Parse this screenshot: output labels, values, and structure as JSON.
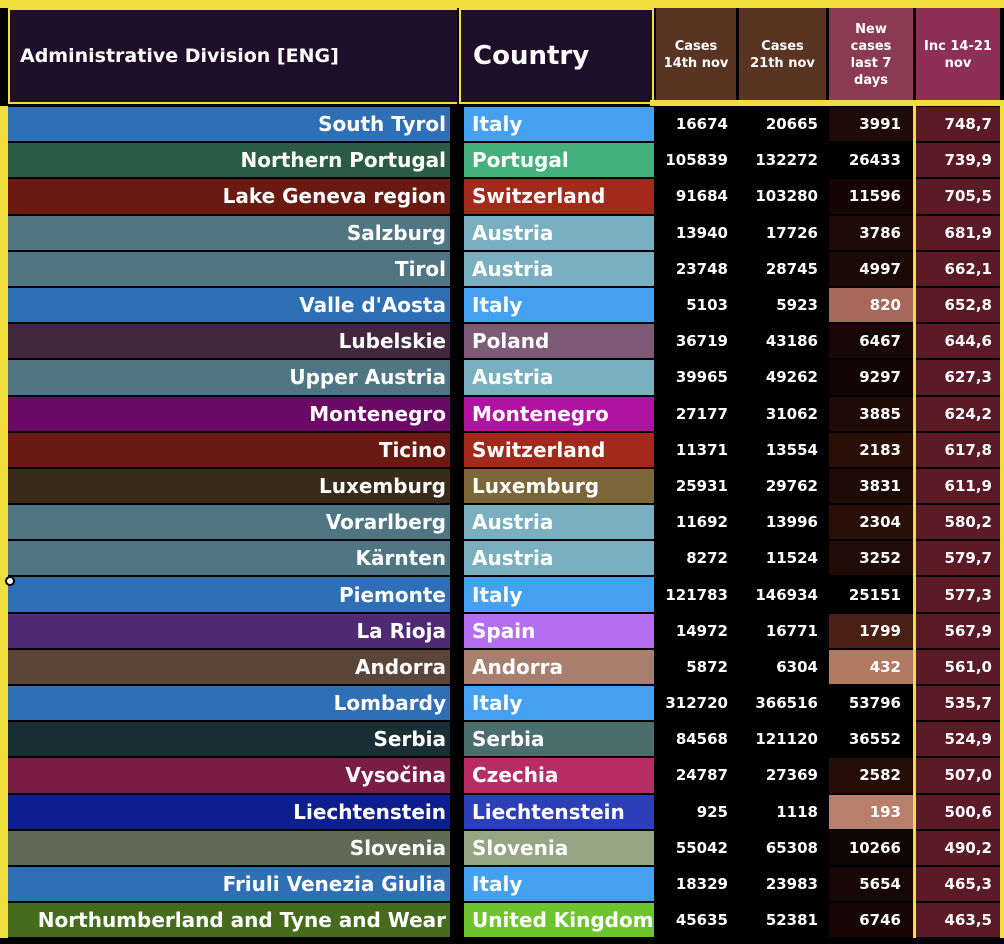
{
  "header": {
    "admin": "Administrative Division [ENG]",
    "country": "Country",
    "cases14": "Cases\n14th nov",
    "cases21": "Cases\n21th nov",
    "new7": "New\ncases\nlast 7\ndays",
    "inc": "Inc 14-21\nnov"
  },
  "rows": [
    {
      "admin": "South Tyrol",
      "country": "Italy",
      "c14": "16674",
      "c21": "20665",
      "new": "3991",
      "inc": "748,7",
      "ac": "#2e6fb5",
      "cc": "#44a1f1",
      "nc": "#1e0b07"
    },
    {
      "admin": "Northern Portugal",
      "country": "Portugal",
      "c14": "105839",
      "c21": "132272",
      "new": "26433",
      "inc": "739,9",
      "ac": "#2b5c43",
      "cc": "#44b07b",
      "nc": "#000000"
    },
    {
      "admin": "Lake Geneva region",
      "country": "Switzerland",
      "c14": "91684",
      "c21": "103280",
      "new": "11596",
      "inc": "705,5",
      "ac": "#6b1a12",
      "cc": "#a32a1a",
      "nc": "#160504"
    },
    {
      "admin": "Salzburg",
      "country": "Austria",
      "c14": "13940",
      "c21": "17726",
      "new": "3786",
      "inc": "681,9",
      "ac": "#4f7682",
      "cc": "#7aafbf",
      "nc": "#1e0b07"
    },
    {
      "admin": "Tirol",
      "country": "Austria",
      "c14": "23748",
      "c21": "28745",
      "new": "4997",
      "inc": "662,1",
      "ac": "#4f7682",
      "cc": "#7aafbf",
      "nc": "#1a0905"
    },
    {
      "admin": "Valle d'Aosta",
      "country": "Italy",
      "c14": "5103",
      "c21": "5923",
      "new": "820",
      "inc": "652,8",
      "ac": "#2e6fb5",
      "cc": "#44a1f1",
      "nc": "#a8675a"
    },
    {
      "admin": "Lubelskie",
      "country": "Poland",
      "c14": "36719",
      "c21": "43186",
      "new": "6467",
      "inc": "644,6",
      "ac": "#42283e",
      "cc": "#7d5a78",
      "nc": "#170805"
    },
    {
      "admin": "Upper Austria",
      "country": "Austria",
      "c14": "39965",
      "c21": "49262",
      "new": "9297",
      "inc": "627,3",
      "ac": "#4f7682",
      "cc": "#7aafbf",
      "nc": "#130503"
    },
    {
      "admin": "Montenegro",
      "country": "Montenegro",
      "c14": "27177",
      "c21": "31062",
      "new": "3885",
      "inc": "624,2",
      "ac": "#6b0a64",
      "cc": "#b0139f",
      "nc": "#1e0b07"
    },
    {
      "admin": "Ticino",
      "country": "Switzerland",
      "c14": "11371",
      "c21": "13554",
      "new": "2183",
      "inc": "617,8",
      "ac": "#6b1a12",
      "cc": "#a32a1a",
      "nc": "#2a0f09"
    },
    {
      "admin": "Luxemburg",
      "country": "Luxemburg",
      "c14": "25931",
      "c21": "29762",
      "new": "3831",
      "inc": "611,9",
      "ac": "#3a2a1a",
      "cc": "#7b6638",
      "nc": "#1e0b07"
    },
    {
      "admin": "Vorarlberg",
      "country": "Austria",
      "c14": "11692",
      "c21": "13996",
      "new": "2304",
      "inc": "580,2",
      "ac": "#4f7682",
      "cc": "#7aafbf",
      "nc": "#2a0f09"
    },
    {
      "admin": "Kärnten",
      "country": "Austria",
      "c14": "8272",
      "c21": "11524",
      "new": "3252",
      "inc": "579,7",
      "ac": "#4f7682",
      "cc": "#7aafbf",
      "nc": "#200c07"
    },
    {
      "admin": "Piemonte",
      "country": "Italy",
      "c14": "121783",
      "c21": "146934",
      "new": "25151",
      "inc": "577,3",
      "ac": "#2e6fb5",
      "cc": "#44a1f1",
      "nc": "#000000"
    },
    {
      "admin": "La Rioja",
      "country": "Spain",
      "c14": "14972",
      "c21": "16771",
      "new": "1799",
      "inc": "567,9",
      "ac": "#4f2a73",
      "cc": "#b36ef2",
      "nc": "#4a1f16"
    },
    {
      "admin": "Andorra",
      "country": "Andorra",
      "c14": "5872",
      "c21": "6304",
      "new": "432",
      "inc": "561,0",
      "ac": "#5a4538",
      "cc": "#a87f6e",
      "nc": "#b07a63"
    },
    {
      "admin": "Lombardy",
      "country": "Italy",
      "c14": "312720",
      "c21": "366516",
      "new": "53796",
      "inc": "535,7",
      "ac": "#2e6fb5",
      "cc": "#44a1f1",
      "nc": "#000000"
    },
    {
      "admin": "Serbia",
      "country": "Serbia",
      "c14": "84568",
      "c21": "121120",
      "new": "36552",
      "inc": "524,9",
      "ac": "#1c2e35",
      "cc": "#4c6d6d",
      "nc": "#000000"
    },
    {
      "admin": "Vysočina",
      "country": "Czechia",
      "c14": "24787",
      "c21": "27369",
      "new": "2582",
      "inc": "507,0",
      "ac": "#7a1d46",
      "cc": "#b72c66",
      "nc": "#260d08"
    },
    {
      "admin": "Liechtenstein",
      "country": "Liechtenstein",
      "c14": "925",
      "c21": "1118",
      "new": "193",
      "inc": "500,6",
      "ac": "#0d1f8f",
      "cc": "#2a3fb8",
      "nc": "#b8806a"
    },
    {
      "admin": "Slovenia",
      "country": "Slovenia",
      "c14": "55042",
      "c21": "65308",
      "new": "10266",
      "inc": "490,2",
      "ac": "#5f6b55",
      "cc": "#96a584",
      "nc": "#0f0402"
    },
    {
      "admin": "Friuli Venezia Giulia",
      "country": "Italy",
      "c14": "18329",
      "c21": "23983",
      "new": "5654",
      "inc": "465,3",
      "ac": "#2e6fb5",
      "cc": "#44a1f1",
      "nc": "#170805"
    },
    {
      "admin": "Northumberland and Tyne and Wear",
      "country": "United Kingdom",
      "c14": "45635",
      "c21": "52381",
      "new": "6746",
      "inc": "463,5",
      "ac": "#456b1d",
      "cc": "#6ec42d",
      "nc": "#160604"
    }
  ]
}
